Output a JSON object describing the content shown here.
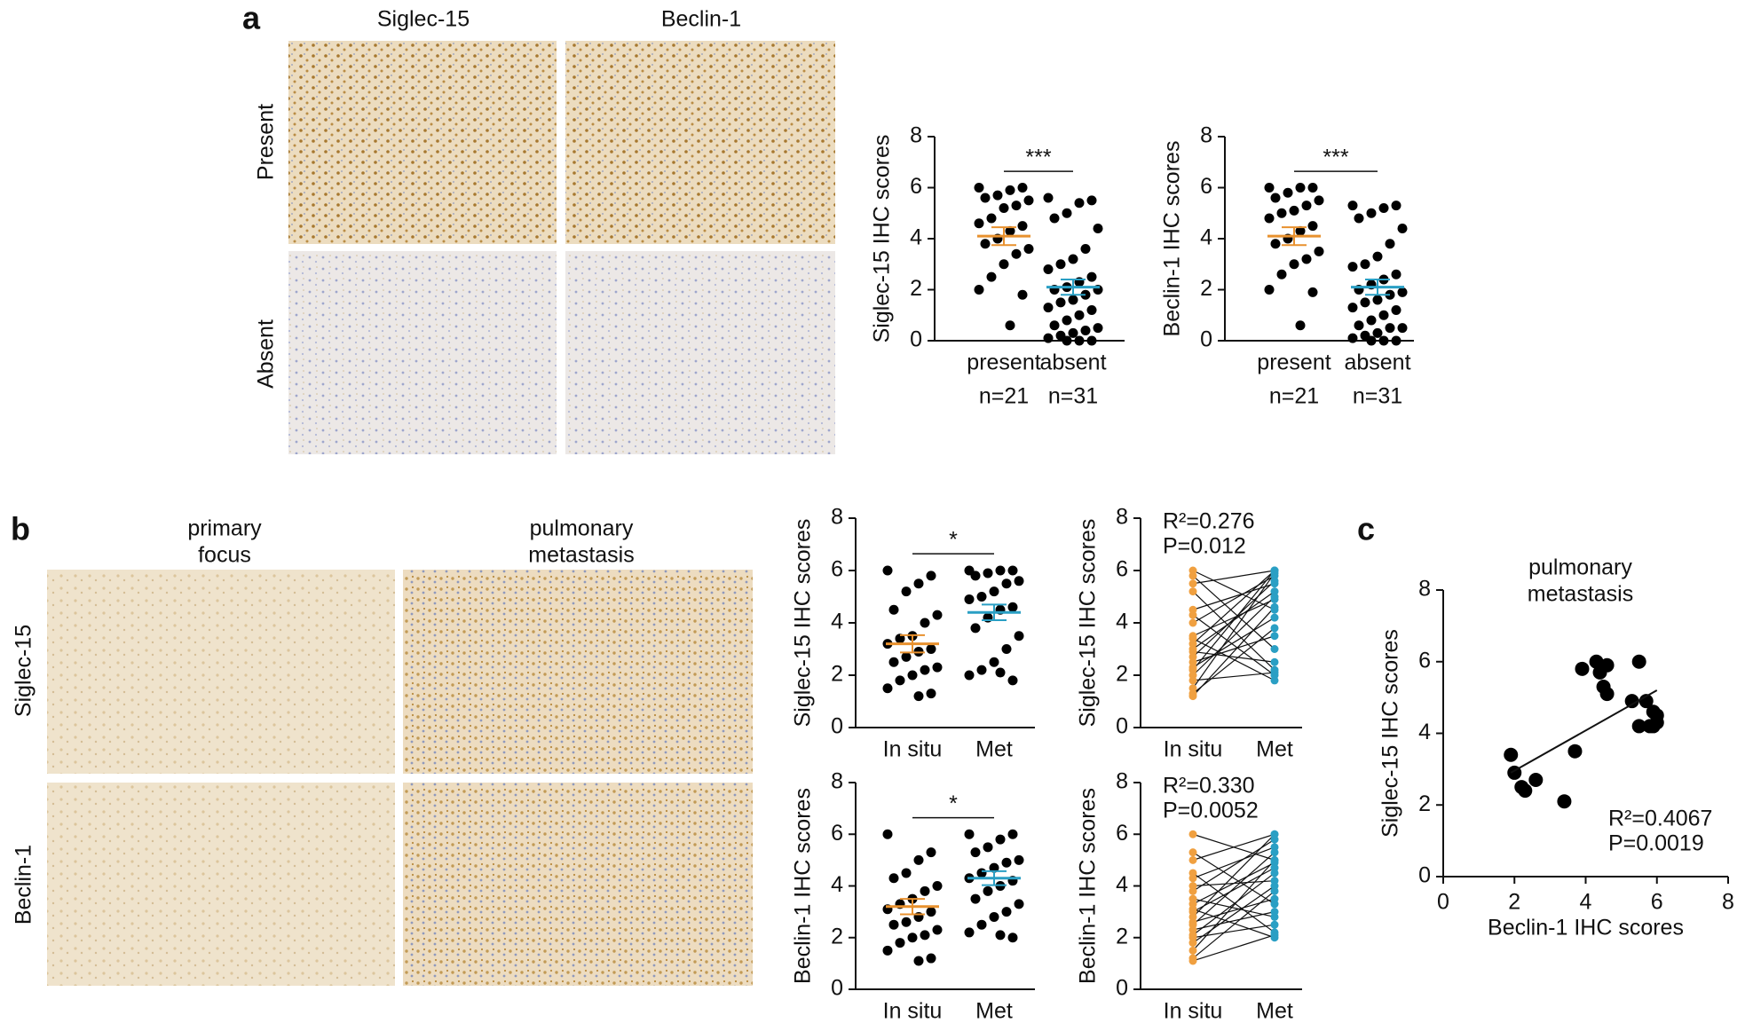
{
  "panels": {
    "a": "a",
    "b": "b",
    "c": "c"
  },
  "images": {
    "a": {
      "columns": [
        "Siglec-15",
        "Beclin-1"
      ],
      "rows": [
        "Present",
        "Absent"
      ]
    },
    "b": {
      "columns": [
        [
          "primary",
          "focus"
        ],
        [
          "pulmonary",
          "metastasis"
        ]
      ],
      "rows": [
        "Siglec-15",
        "Beclin-1"
      ]
    }
  },
  "chart_data": [
    {
      "type": "dot",
      "ylabel": "Siglec-15 IHC scores",
      "categories": [
        "present",
        "absent"
      ],
      "counts": [
        "n=21",
        "n=31"
      ],
      "ylim": [
        0,
        8
      ],
      "yticks": [
        0,
        2,
        4,
        6,
        8
      ],
      "significance": "***",
      "groups": [
        {
          "values": [
            6,
            6,
            5.9,
            5.7,
            5.6,
            5.5,
            5.3,
            5.2,
            4.8,
            4.6,
            4.5,
            4.3,
            4,
            3.8,
            3.6,
            3.4,
            3,
            2.5,
            2,
            1.8,
            0.6
          ],
          "mean": 4.1,
          "sem": 0.35,
          "color": "#e8912e"
        },
        {
          "values": [
            5.6,
            5.5,
            5.4,
            5,
            4.8,
            4.4,
            3.6,
            3.2,
            3,
            2.8,
            2.5,
            2.3,
            2.1,
            2,
            2,
            1.8,
            1.6,
            1.5,
            1.3,
            1.2,
            1,
            0.8,
            0.6,
            0.5,
            0.4,
            0.3,
            0.2,
            0.1,
            0,
            0,
            0
          ],
          "mean": 2.1,
          "sem": 0.3,
          "color": "#2a9fc4"
        }
      ]
    },
    {
      "type": "dot",
      "ylabel": "Beclin-1 IHC scores",
      "categories": [
        "present",
        "absent"
      ],
      "counts": [
        "n=21",
        "n=31"
      ],
      "ylim": [
        0,
        8
      ],
      "yticks": [
        0,
        2,
        4,
        6,
        8
      ],
      "significance": "***",
      "groups": [
        {
          "values": [
            6,
            6,
            6,
            5.8,
            5.6,
            5.5,
            5.3,
            5.1,
            5,
            4.8,
            4.5,
            4.3,
            4,
            3.8,
            3.5,
            3.2,
            3,
            2.6,
            2,
            1.9,
            0.6
          ],
          "mean": 4.1,
          "sem": 0.35,
          "color": "#e8912e"
        },
        {
          "values": [
            5.3,
            5.3,
            5.2,
            5,
            4.8,
            4.4,
            3.8,
            3.3,
            3,
            2.9,
            2.6,
            2.4,
            2.2,
            2,
            1.9,
            1.8,
            1.6,
            1.5,
            1.3,
            1.2,
            1,
            0.8,
            0.6,
            0.5,
            0.5,
            0.3,
            0.2,
            0.1,
            0,
            0,
            0
          ],
          "mean": 2.1,
          "sem": 0.3,
          "color": "#2a9fc4"
        }
      ]
    },
    {
      "type": "dot",
      "ylabel": "Siglec-15 IHC scores",
      "categories": [
        "In situ",
        "Met"
      ],
      "ylim": [
        0,
        8
      ],
      "yticks": [
        0,
        2,
        4,
        6,
        8
      ],
      "significance": "*",
      "groups": [
        {
          "values": [
            6,
            5.8,
            5.5,
            5.2,
            4.5,
            4.3,
            4,
            3.5,
            3.4,
            3.2,
            3,
            2.9,
            2.7,
            2.5,
            2.3,
            2.2,
            2,
            1.8,
            1.5,
            1.3,
            1.2
          ],
          "mean": 3.2,
          "sem": 0.33,
          "color": "#e8912e"
        },
        {
          "values": [
            6,
            6,
            6,
            5.9,
            5.8,
            5.6,
            5.5,
            5.2,
            5,
            4.9,
            4.6,
            4.5,
            4.2,
            3.8,
            3.5,
            3,
            2.5,
            2.2,
            2,
            1.8,
            2.1
          ],
          "mean": 4.4,
          "sem": 0.3,
          "color": "#2a9fc4"
        }
      ]
    },
    {
      "type": "paired",
      "ylabel": "Siglec-15 IHC scores",
      "categories": [
        "In situ",
        "Met"
      ],
      "ylim": [
        0,
        8
      ],
      "yticks": [
        0,
        2,
        4,
        6,
        8
      ],
      "annotations": [
        "R²=0.276",
        "P=0.012"
      ],
      "groups": [
        {
          "values": [
            6,
            5.8,
            5.5,
            5.2,
            4.5,
            4.3,
            4,
            3.5,
            3.4,
            3.2,
            3,
            2.9,
            2.7,
            2.5,
            2.3,
            2.2,
            2,
            1.8,
            1.5,
            1.3,
            1.2
          ],
          "color": "#f0a040"
        },
        {
          "values": [
            4.5,
            3,
            6,
            2.2,
            5.5,
            2,
            5.8,
            4.9,
            1.8,
            6,
            5.2,
            2.5,
            5.6,
            3.5,
            4.2,
            6,
            5,
            2.1,
            5.9,
            3.8,
            4.6
          ],
          "color": "#2a9fc4"
        }
      ]
    },
    {
      "type": "dot",
      "ylabel": "Beclin-1 IHC scores",
      "categories": [
        "In situ",
        "Met"
      ],
      "ylim": [
        0,
        8
      ],
      "yticks": [
        0,
        2,
        4,
        6,
        8
      ],
      "significance": "*",
      "groups": [
        {
          "values": [
            6,
            5.3,
            5,
            4.5,
            4.3,
            4,
            3.8,
            3.5,
            3.3,
            3.1,
            3,
            2.8,
            2.6,
            2.5,
            2.3,
            2.1,
            2,
            1.8,
            1.5,
            1.2,
            1.1
          ],
          "mean": 3.2,
          "sem": 0.3,
          "color": "#e8912e"
        },
        {
          "values": [
            6,
            6,
            5.8,
            5.5,
            5.3,
            5,
            4.9,
            4.7,
            4.5,
            4.3,
            4.2,
            4,
            3.8,
            3.5,
            3.3,
            3,
            2.8,
            2.5,
            2.2,
            2,
            2.1
          ],
          "mean": 4.3,
          "sem": 0.27,
          "color": "#2a9fc4"
        }
      ]
    },
    {
      "type": "paired",
      "ylabel": "Beclin-1 IHC scores",
      "categories": [
        "In situ",
        "Met"
      ],
      "ylim": [
        0,
        8
      ],
      "yticks": [
        0,
        2,
        4,
        6,
        8
      ],
      "annotations": [
        "R²=0.330",
        "P=0.0052"
      ],
      "groups": [
        {
          "values": [
            6,
            5.3,
            5,
            4.5,
            4.3,
            4,
            3.8,
            3.5,
            3.3,
            3.1,
            3,
            2.8,
            2.6,
            2.5,
            2.3,
            2.1,
            2,
            1.8,
            1.5,
            1.2,
            1.1
          ],
          "color": "#f0a040"
        },
        {
          "values": [
            5,
            3.3,
            6,
            2.2,
            5.5,
            4.2,
            5.8,
            2.8,
            4.9,
            2,
            4.7,
            6,
            3.5,
            5.3,
            3,
            4.5,
            2.5,
            4,
            5,
            3.8,
            2.1
          ],
          "color": "#2a9fc4"
        }
      ]
    },
    {
      "type": "scatter",
      "title": [
        "pulmonary",
        "metastasis"
      ],
      "xlabel": "Beclin-1 IHC scores",
      "ylabel": "Siglec-15 IHC scores",
      "x": [
        1.9,
        2,
        2.2,
        2.3,
        2.6,
        3.4,
        3.7,
        3.9,
        4.3,
        4.4,
        4.5,
        4.6,
        4.6,
        5.3,
        5.5,
        5.5,
        5.7,
        5.8,
        5.9,
        6,
        6,
        5.9
      ],
      "y": [
        3.4,
        2.9,
        2.5,
        2.4,
        2.7,
        2.1,
        3.5,
        5.8,
        6,
        5.7,
        5.3,
        5.1,
        5.9,
        4.9,
        6,
        4.2,
        4.9,
        4.2,
        4.6,
        4.5,
        4.3,
        4.2
      ],
      "xlim": [
        0,
        8
      ],
      "ylim": [
        0,
        8
      ],
      "xticks": [
        0,
        2,
        4,
        6,
        8
      ],
      "yticks": [
        0,
        2,
        4,
        6,
        8
      ],
      "fit": {
        "x": [
          1.9,
          6
        ],
        "y": [
          2.9,
          5.2
        ]
      },
      "color": "#000000",
      "annotations": [
        "R²=0.4067",
        "P=0.0019"
      ]
    }
  ]
}
